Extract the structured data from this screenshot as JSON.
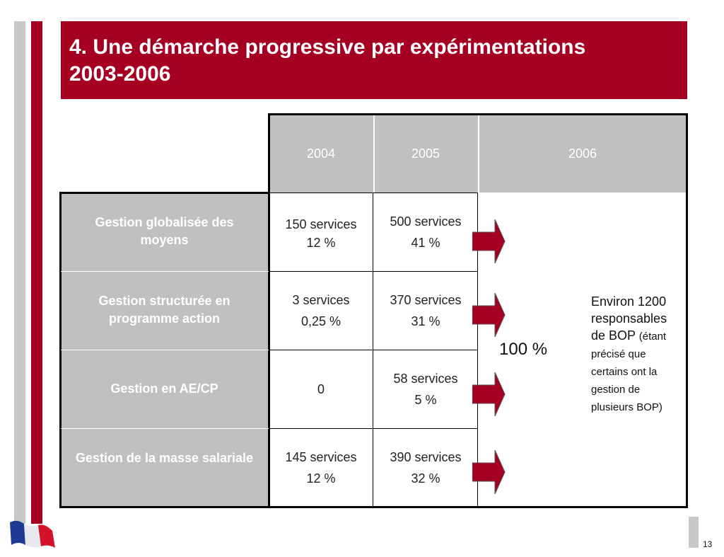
{
  "slide": {
    "title_line1": "4. Une démarche progressive par expérimentations",
    "title_line2": "2003-2006",
    "page_number": "13"
  },
  "table": {
    "headers": [
      "2004",
      "2005",
      "2006"
    ],
    "rows": [
      {
        "label": "Gestion globalisée des moyens",
        "y2004": [
          "150 services",
          "12 %"
        ],
        "y2005": [
          "500 services",
          "41 %"
        ]
      },
      {
        "label": "Gestion structurée en programme action",
        "y2004": [
          "3 services",
          "0,25 %"
        ],
        "y2005": [
          "370 services",
          "31 %"
        ]
      },
      {
        "label": "Gestion en AE/CP",
        "y2004": [
          "0"
        ],
        "y2005": [
          "58 services",
          "5 %"
        ]
      },
      {
        "label": "Gestion de la masse salariale",
        "y2004": [
          "145 services",
          "12 %"
        ],
        "y2005": [
          "390 services",
          "32 %"
        ]
      }
    ],
    "col2006": {
      "percent": "100 %",
      "note_main": "Environ 1200 responsables de BOP",
      "note_detail": "(étant précisé que certains ont la gestion de plusieurs BOP)"
    }
  },
  "colors": {
    "accent_red": "#a50022",
    "header_grey": "#c0c0c0",
    "stripe_grey": "#c8c8c8"
  }
}
